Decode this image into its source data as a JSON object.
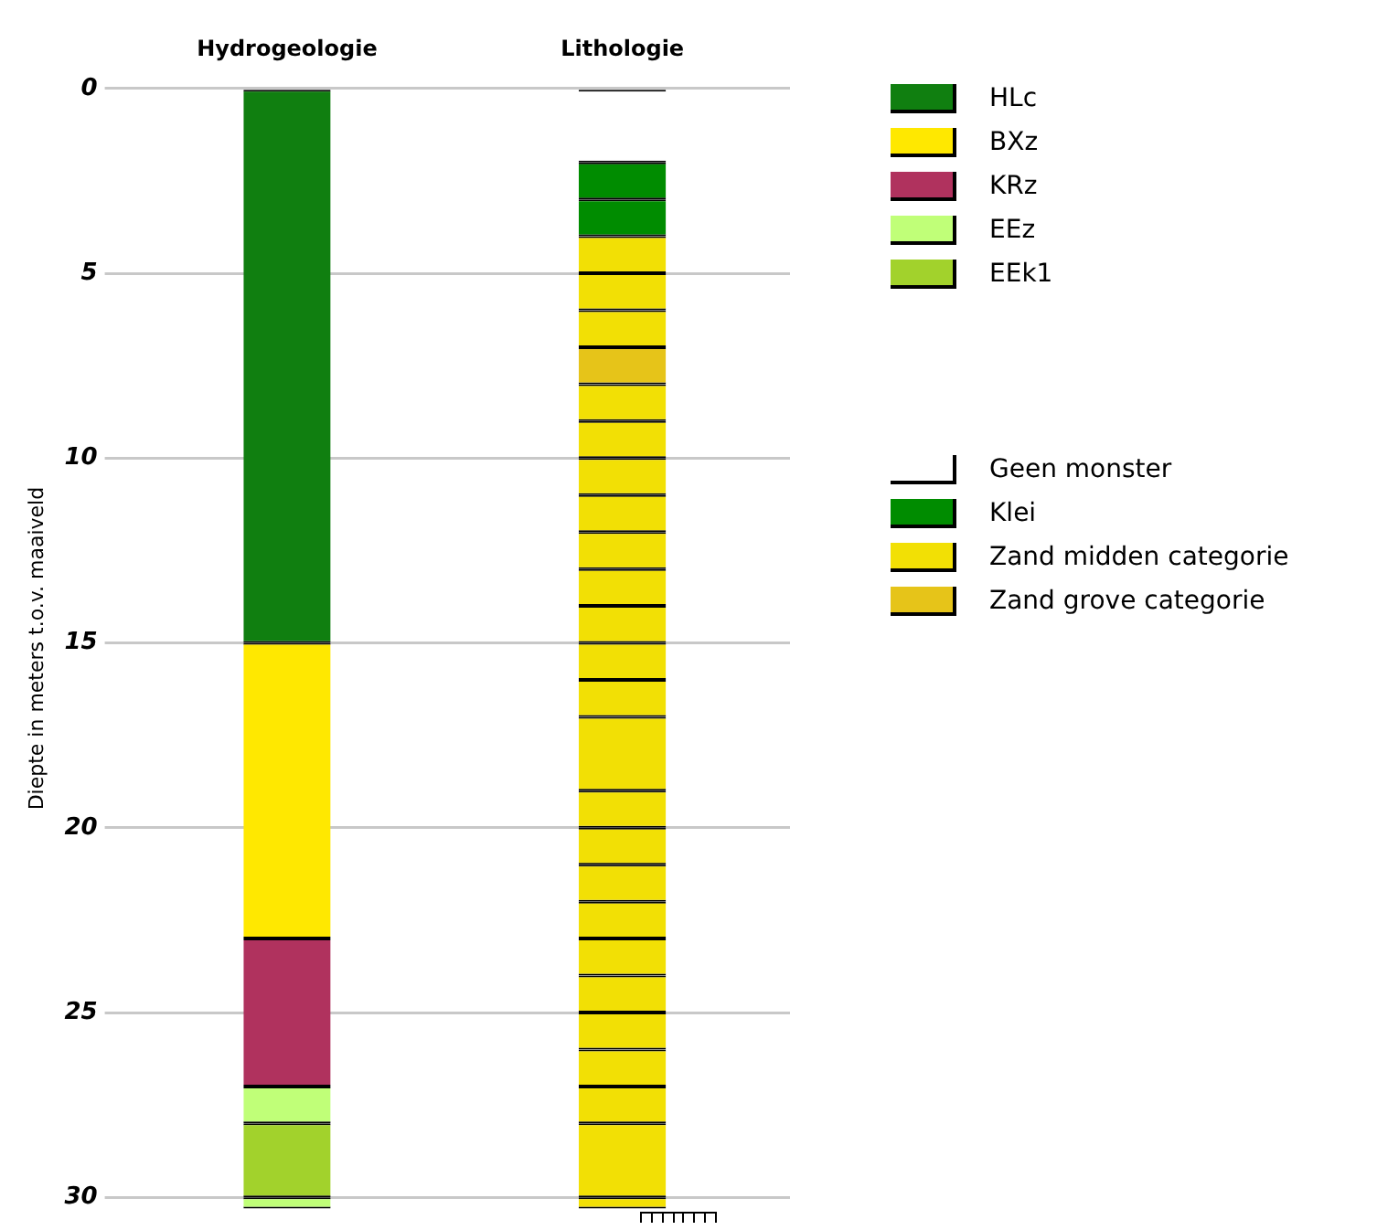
{
  "chart_data": {
    "type": "bar",
    "ylabel": "Diepte in meters t.o.v. maaiveld",
    "categories": [
      "Hydrogeologie",
      "Lithologie"
    ],
    "stacked": true,
    "ylim": [
      30.3,
      0
    ],
    "yticks": [
      0,
      5,
      10,
      15,
      20,
      25,
      30
    ],
    "grid": "y",
    "legend": "right",
    "series": [
      {
        "name": "HLc",
        "color": "#107f10",
        "values": [
          15,
          null
        ]
      },
      {
        "name": "BXz",
        "color": "#ffe800",
        "values": [
          8,
          null
        ]
      },
      {
        "name": "KRz",
        "color": "#b0325e",
        "values": [
          4,
          null
        ]
      },
      {
        "name": "EEz",
        "color": "#c0ff78",
        "values": [
          1,
          null
        ]
      },
      {
        "name": "EEk1",
        "color": "#a2d22c",
        "values": [
          2,
          null
        ]
      },
      {
        "color": "#c0ff78",
        "values": [
          0.3,
          null
        ]
      },
      {
        "name": "Geen monster",
        "color": "#ffffff",
        "values": [
          null,
          2
        ]
      },
      {
        "name": "Klei",
        "color": "#008c00",
        "values": [
          null,
          1
        ]
      },
      {
        "color": "#008c00",
        "values": [
          null,
          1
        ]
      },
      {
        "name": "Zand midden categorie",
        "color": "#f2e005",
        "values": [
          null,
          1
        ]
      },
      {
        "color": "#f2e005",
        "values": [
          null,
          1
        ]
      },
      {
        "color": "#f2e005",
        "values": [
          null,
          1
        ]
      },
      {
        "name": "Zand grove categorie",
        "color": "#e6c419",
        "values": [
          null,
          1
        ]
      },
      {
        "color": "#f2e005",
        "values": [
          null,
          1
        ]
      },
      {
        "color": "#f2e005",
        "values": [
          null,
          1
        ]
      },
      {
        "color": "#f2e005",
        "values": [
          null,
          1
        ]
      },
      {
        "color": "#f2e005",
        "values": [
          null,
          1
        ]
      },
      {
        "color": "#f2e005",
        "values": [
          null,
          1
        ]
      },
      {
        "color": "#f2e005",
        "values": [
          null,
          1
        ]
      },
      {
        "color": "#f2e005",
        "values": [
          null,
          1
        ]
      },
      {
        "color": "#f2e005",
        "values": [
          null,
          1
        ]
      },
      {
        "color": "#f2e005",
        "values": [
          null,
          1
        ]
      },
      {
        "color": "#f2e005",
        "values": [
          null,
          2
        ]
      },
      {
        "color": "#f2e005",
        "values": [
          null,
          1
        ]
      },
      {
        "color": "#f2e005",
        "values": [
          null,
          1
        ]
      },
      {
        "color": "#f2e005",
        "values": [
          null,
          1
        ]
      },
      {
        "color": "#f2e005",
        "values": [
          null,
          1
        ]
      },
      {
        "color": "#f2e005",
        "values": [
          null,
          1
        ]
      },
      {
        "color": "#f2e005",
        "values": [
          null,
          1
        ]
      },
      {
        "color": "#f2e005",
        "values": [
          null,
          1
        ]
      },
      {
        "color": "#f2e005",
        "values": [
          null,
          1
        ]
      },
      {
        "color": "#f2e005",
        "values": [
          null,
          1
        ]
      },
      {
        "color": "#f2e005",
        "values": [
          null,
          2
        ]
      },
      {
        "color": "#f2e005",
        "values": [
          null,
          0.3
        ]
      }
    ]
  }
}
